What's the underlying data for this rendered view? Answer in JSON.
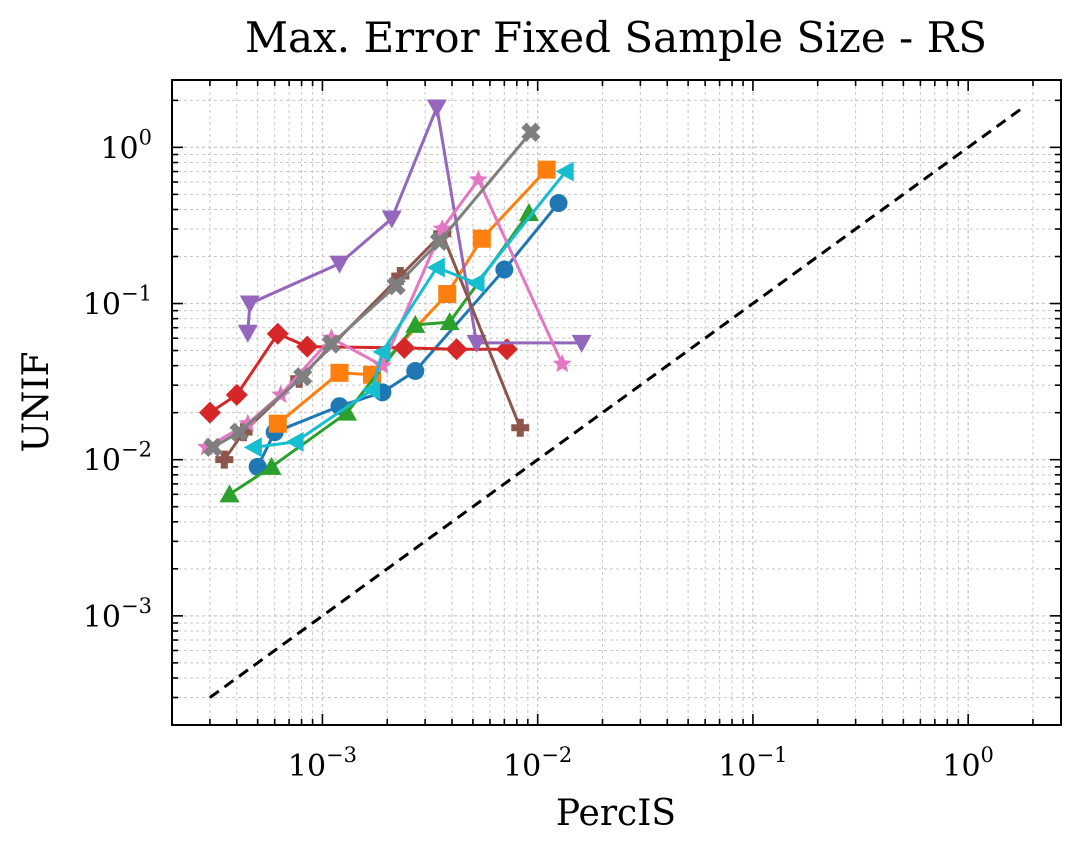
{
  "chart_data": {
    "type": "scatter",
    "title": "Max. Error Fixed Sample Size - RS",
    "xlabel": "PercIS",
    "ylabel": "UNIF",
    "xscale": "log",
    "yscale": "log",
    "xlim": [
      0.0002,
      2.7
    ],
    "ylim": [
      0.0002,
      2.7
    ],
    "grid": true,
    "x_tick_labels": [
      {
        "value": 0.001,
        "base": "10",
        "exp": "−3"
      },
      {
        "value": 0.01,
        "base": "10",
        "exp": "−2"
      },
      {
        "value": 0.1,
        "base": "10",
        "exp": "−1"
      },
      {
        "value": 1,
        "base": "10",
        "exp": "0"
      }
    ],
    "y_tick_labels": [
      {
        "value": 0.001,
        "base": "10",
        "exp": "−3"
      },
      {
        "value": 0.01,
        "base": "10",
        "exp": "−2"
      },
      {
        "value": 0.1,
        "base": "10",
        "exp": "−1"
      },
      {
        "value": 1,
        "base": "10",
        "exp": "0"
      }
    ],
    "reference_line": {
      "name": "y = x",
      "color": "#000000",
      "style": "dashed",
      "x": [
        0.0003,
        1.8
      ],
      "y": [
        0.0003,
        1.8
      ]
    },
    "series": [
      {
        "name": "series-blue",
        "color": "#1f77b4",
        "marker": "circle",
        "x": [
          0.0005,
          0.0006,
          0.0012,
          0.0019,
          0.0027,
          0.007,
          0.0125
        ],
        "y": [
          0.009,
          0.015,
          0.022,
          0.027,
          0.037,
          0.165,
          0.44
        ]
      },
      {
        "name": "series-orange",
        "color": "#ff7f0e",
        "marker": "square",
        "x": [
          0.00062,
          0.0012,
          0.0017,
          0.0038,
          0.0055,
          0.011
        ],
        "y": [
          0.017,
          0.036,
          0.035,
          0.115,
          0.26,
          0.72
        ]
      },
      {
        "name": "series-green",
        "color": "#2ca02c",
        "marker": "triangle-up",
        "x": [
          0.00037,
          0.00058,
          0.0013,
          0.0027,
          0.0039,
          0.0091
        ],
        "y": [
          0.006,
          0.009,
          0.02,
          0.073,
          0.076,
          0.38
        ]
      },
      {
        "name": "series-red",
        "color": "#d62728",
        "marker": "diamond",
        "x": [
          0.0003,
          0.0004,
          0.00062,
          0.00085,
          0.0024,
          0.0042,
          0.0072
        ],
        "y": [
          0.02,
          0.026,
          0.064,
          0.053,
          0.052,
          0.051,
          0.051
        ]
      },
      {
        "name": "series-purple",
        "color": "#9467bd",
        "marker": "triangle-down",
        "x": [
          0.00045,
          0.00046,
          0.0012,
          0.0021,
          0.0034,
          0.0052,
          0.016
        ],
        "y": [
          0.065,
          0.1,
          0.18,
          0.35,
          1.8,
          0.056,
          0.056
        ]
      },
      {
        "name": "series-brown",
        "color": "#8c564b",
        "marker": "plus",
        "x": [
          0.00035,
          0.00043,
          0.00078,
          0.0023,
          0.0036,
          0.0083
        ],
        "y": [
          0.01,
          0.015,
          0.033,
          0.15,
          0.28,
          0.016
        ]
      },
      {
        "name": "series-pink",
        "color": "#e377c2",
        "marker": "star",
        "x": [
          0.00029,
          0.00045,
          0.00064,
          0.0011,
          0.0019,
          0.0036,
          0.0053,
          0.013
        ],
        "y": [
          0.012,
          0.017,
          0.026,
          0.06,
          0.04,
          0.3,
          0.62,
          0.041
        ]
      },
      {
        "name": "series-gray",
        "color": "#7f7f7f",
        "marker": "x-filled",
        "x": [
          0.00031,
          0.00041,
          0.00081,
          0.0011,
          0.0022,
          0.0035,
          0.0093
        ],
        "y": [
          0.012,
          0.015,
          0.034,
          0.055,
          0.13,
          0.25,
          1.25
        ]
      },
      {
        "name": "series-cyan",
        "color": "#17becf",
        "marker": "triangle-left",
        "x": [
          0.00048,
          0.00075,
          0.0017,
          0.0019,
          0.0034,
          0.0052,
          0.0135
        ],
        "y": [
          0.012,
          0.013,
          0.028,
          0.049,
          0.17,
          0.135,
          0.7
        ]
      }
    ]
  }
}
